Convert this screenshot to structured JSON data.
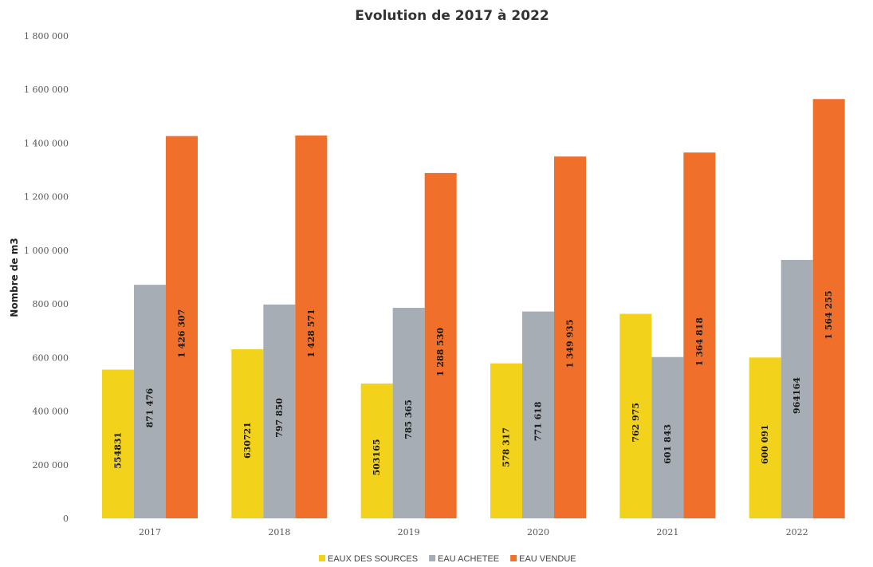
{
  "chart_data": {
    "type": "bar",
    "title": "Evolution de 2017 à 2022",
    "xlabel": "",
    "ylabel": "Nombre de m3",
    "ylim": [
      0,
      1800000
    ],
    "yticks": [
      0,
      200000,
      400000,
      600000,
      800000,
      1000000,
      1200000,
      1400000,
      1600000,
      1800000
    ],
    "ytick_labels": [
      "0",
      "200 000",
      "400 000",
      "600 000",
      "800 000",
      "1 000 000",
      "1 200 000",
      "1 400 000",
      "1 600 000",
      "1 800 000"
    ],
    "categories": [
      "2017",
      "2018",
      "2019",
      "2020",
      "2021",
      "2022"
    ],
    "series": [
      {
        "name": "EAUX DES SOURCES",
        "color": "#F2D21A",
        "values": [
          554831,
          630721,
          503165,
          578317,
          762975,
          600091
        ],
        "labels": [
          "554831",
          "630721",
          "503165",
          "578 317",
          "762 975",
          "600 091"
        ]
      },
      {
        "name": "EAU ACHETEE",
        "color": "#A6ADB4",
        "values": [
          871476,
          797850,
          785365,
          771618,
          601843,
          964164
        ],
        "labels": [
          "871 476",
          "797 850",
          "785 365",
          "771 618",
          "601 843",
          "964164"
        ]
      },
      {
        "name": "EAU VENDUE",
        "color": "#F06F2A",
        "values": [
          1426307,
          1428571,
          1288530,
          1349935,
          1364818,
          1564255
        ],
        "labels": [
          "1 426 307",
          "1 428 571",
          "1 288 530",
          "1 349 935",
          "1 364 818",
          "1 564 255"
        ]
      }
    ],
    "grid": false,
    "legend": "bottom-center"
  }
}
